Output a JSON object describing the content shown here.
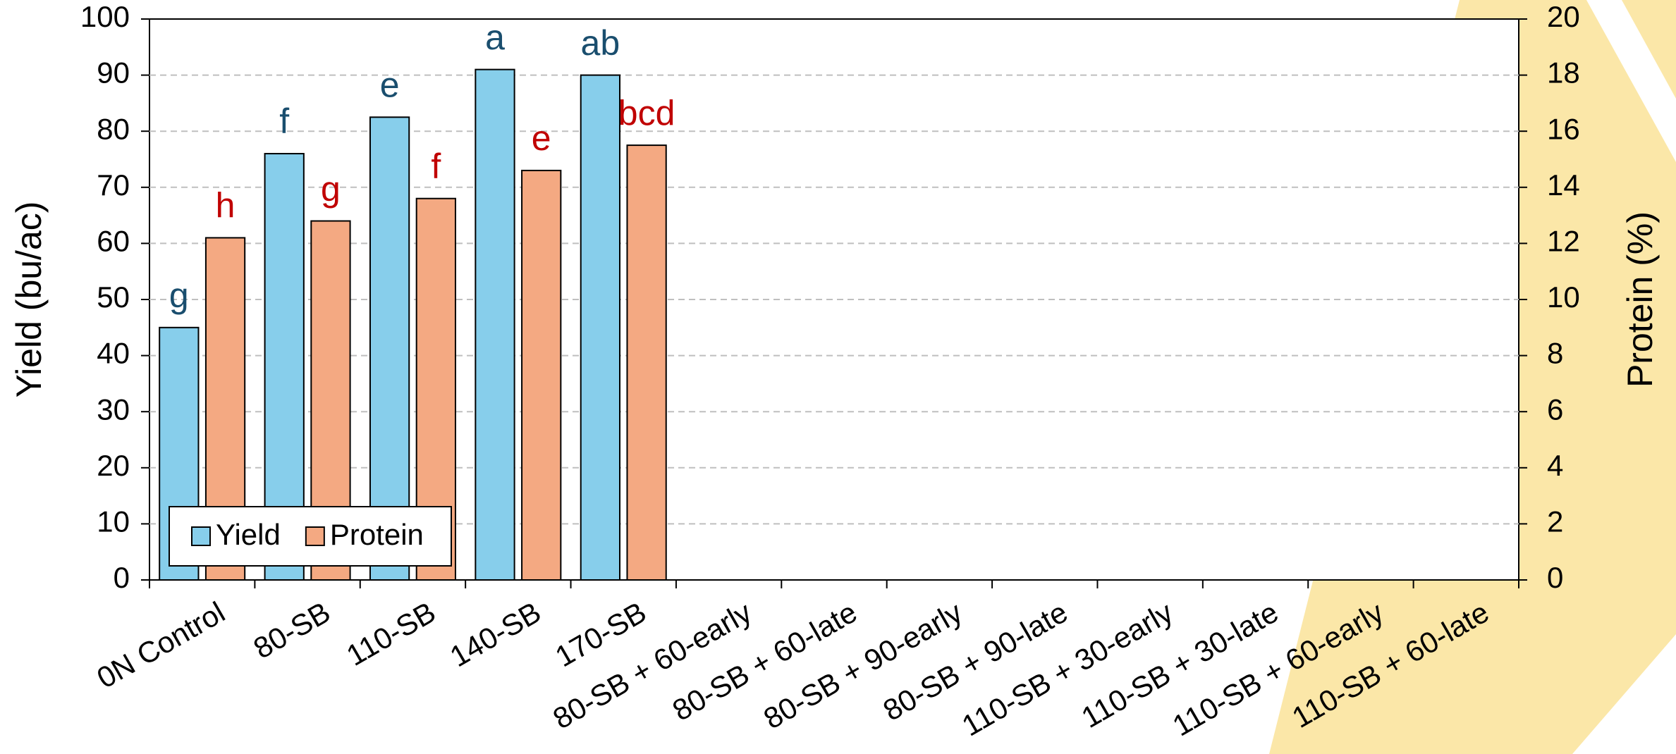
{
  "chart_data": {
    "type": "bar",
    "categories": [
      "0N Control",
      "80-SB",
      "110-SB",
      "140-SB",
      "170-SB",
      "80-SB + 60-early",
      "80-SB + 60-late",
      "80-SB + 90-early",
      "80-SB + 90-late",
      "110-SB + 30-early",
      "110-SB + 30-late",
      "110-SB + 60-early",
      "110-SB + 60-late"
    ],
    "series": [
      {
        "name": "Yield",
        "color": "#87ceeb",
        "label_color": "#1a4e6e",
        "values": [
          45,
          76,
          82.5,
          91,
          90,
          null,
          null,
          null,
          null,
          null,
          null,
          null,
          null
        ],
        "letters": [
          "g",
          "f",
          "e",
          "a",
          "ab",
          null,
          null,
          null,
          null,
          null,
          null,
          null,
          null
        ]
      },
      {
        "name": "Protein",
        "color": "#f4a982",
        "label_color": "#c00000",
        "axis": "y2",
        "values": [
          12.2,
          12.8,
          13.6,
          14.6,
          15.5,
          null,
          null,
          null,
          null,
          null,
          null,
          null,
          null
        ],
        "letters": [
          "h",
          "g",
          "f",
          "e",
          "bcd",
          null,
          null,
          null,
          null,
          null,
          null,
          null,
          null
        ]
      }
    ],
    "ylabel": "Yield (bu/ac)",
    "y2label": "Protein (%)",
    "ylim": [
      0,
      100
    ],
    "yticks": [
      0,
      10,
      20,
      30,
      40,
      50,
      60,
      70,
      80,
      90,
      100
    ],
    "y2lim": [
      0,
      20
    ],
    "y2ticks": [
      0,
      2,
      4,
      6,
      8,
      10,
      12,
      14,
      16,
      18,
      20
    ],
    "grid": true,
    "legend": "lower left"
  }
}
